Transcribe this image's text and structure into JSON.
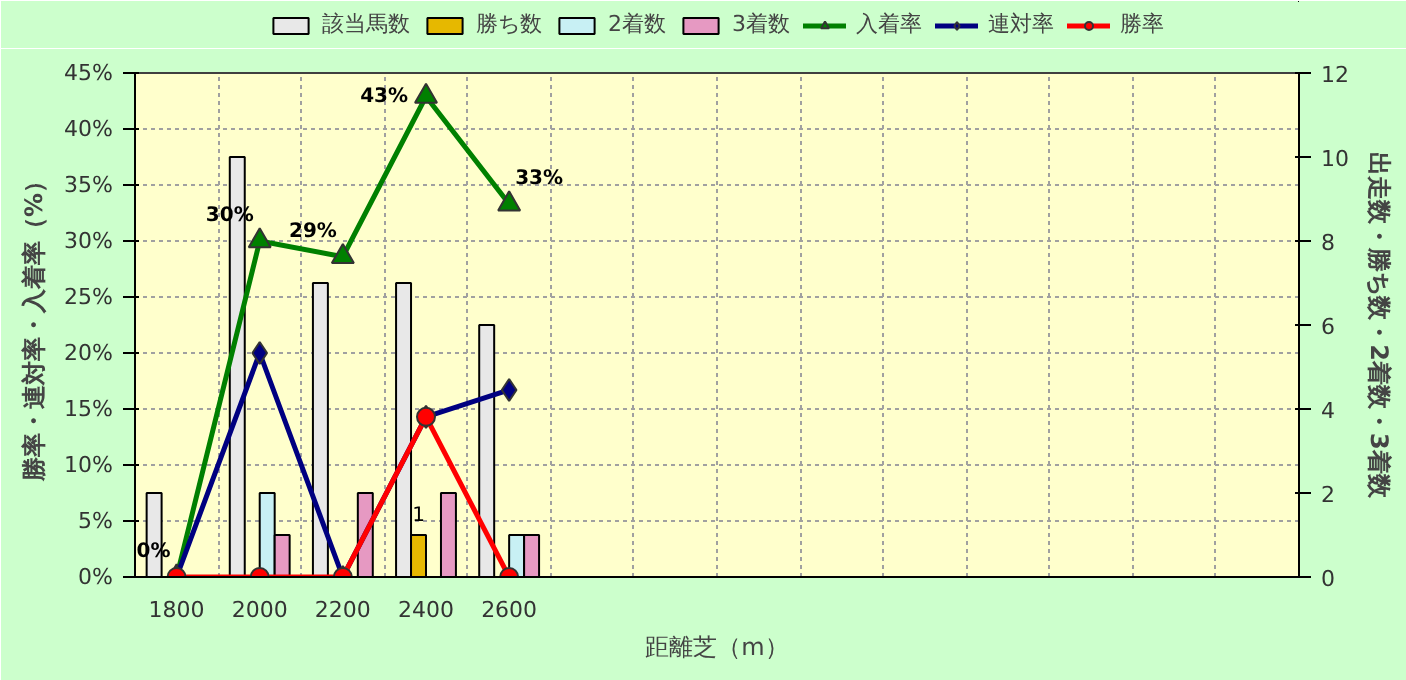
{
  "chart_data": {
    "type": "bar",
    "categories": [
      "1800",
      "2000",
      "2200",
      "2400",
      "2600",
      null,
      null,
      null,
      null,
      null,
      null,
      null,
      null,
      null
    ],
    "xlabel": "距離芝（m）",
    "ylabel": "勝率・連対率・入着率（%）",
    "y2label": "出走数・勝ち数・2着数・3着数",
    "ylim": [
      0,
      45
    ],
    "yticks": [
      {
        "value": 0,
        "label": "0%"
      },
      {
        "value": 5,
        "label": "5%"
      },
      {
        "value": 10,
        "label": "10%"
      },
      {
        "value": 15,
        "label": "15%"
      },
      {
        "value": 20,
        "label": "20%"
      },
      {
        "value": 25,
        "label": "25%"
      },
      {
        "value": 30,
        "label": "30%"
      },
      {
        "value": 35,
        "label": "35%"
      },
      {
        "value": 40,
        "label": "40%"
      },
      {
        "value": 45,
        "label": "45%"
      }
    ],
    "y2lim": [
      0,
      12
    ],
    "y2ticks": [
      0,
      2,
      4,
      6,
      8,
      10,
      12
    ],
    "grid": true,
    "legend": "top",
    "series": [
      {
        "name": "該当馬数",
        "axis": "y2",
        "color": "#e8e8e8",
        "values": [
          2,
          10,
          7,
          7,
          6,
          null,
          null,
          null,
          null,
          null,
          null,
          null,
          null,
          null
        ]
      },
      {
        "name": "勝ち数",
        "axis": "y2",
        "color": "#e6b800",
        "values": [
          0,
          0,
          0,
          1,
          0,
          null,
          null,
          null,
          null,
          null,
          null,
          null,
          null,
          null
        ],
        "value_labels": [
          null,
          null,
          null,
          "1",
          null,
          null,
          null,
          null,
          null,
          null,
          null,
          null,
          null,
          null
        ]
      },
      {
        "name": "2着数",
        "axis": "y2",
        "color": "#c8f0f4",
        "values": [
          0,
          2,
          0,
          0,
          1,
          null,
          null,
          null,
          null,
          null,
          null,
          null,
          null,
          null
        ]
      },
      {
        "name": "3着数",
        "axis": "y2",
        "color": "#e699c2",
        "values": [
          0,
          1,
          2,
          2,
          1,
          null,
          null,
          null,
          null,
          null,
          null,
          null,
          null,
          null
        ]
      },
      {
        "name": "入着率",
        "type": "line",
        "marker": "triangle",
        "color": "#008000",
        "values": [
          0,
          30,
          28.6,
          42.9,
          33.3,
          null,
          null,
          null,
          null,
          null,
          null,
          null,
          null,
          null
        ],
        "value_labels": [
          "0%",
          "30%",
          "29%",
          "43%",
          "33%",
          null,
          null,
          null,
          null,
          null,
          null,
          null,
          null,
          null
        ]
      },
      {
        "name": "連対率",
        "type": "line",
        "marker": "diamond",
        "color": "#000080",
        "values": [
          0,
          20,
          0,
          14.3,
          16.7,
          null,
          null,
          null,
          null,
          null,
          null,
          null,
          null,
          null
        ]
      },
      {
        "name": "勝率",
        "type": "line",
        "marker": "circle",
        "color": "#ff0000",
        "values": [
          0,
          0,
          0,
          14.3,
          0,
          null,
          null,
          null,
          null,
          null,
          null,
          null,
          null,
          null
        ]
      }
    ]
  }
}
